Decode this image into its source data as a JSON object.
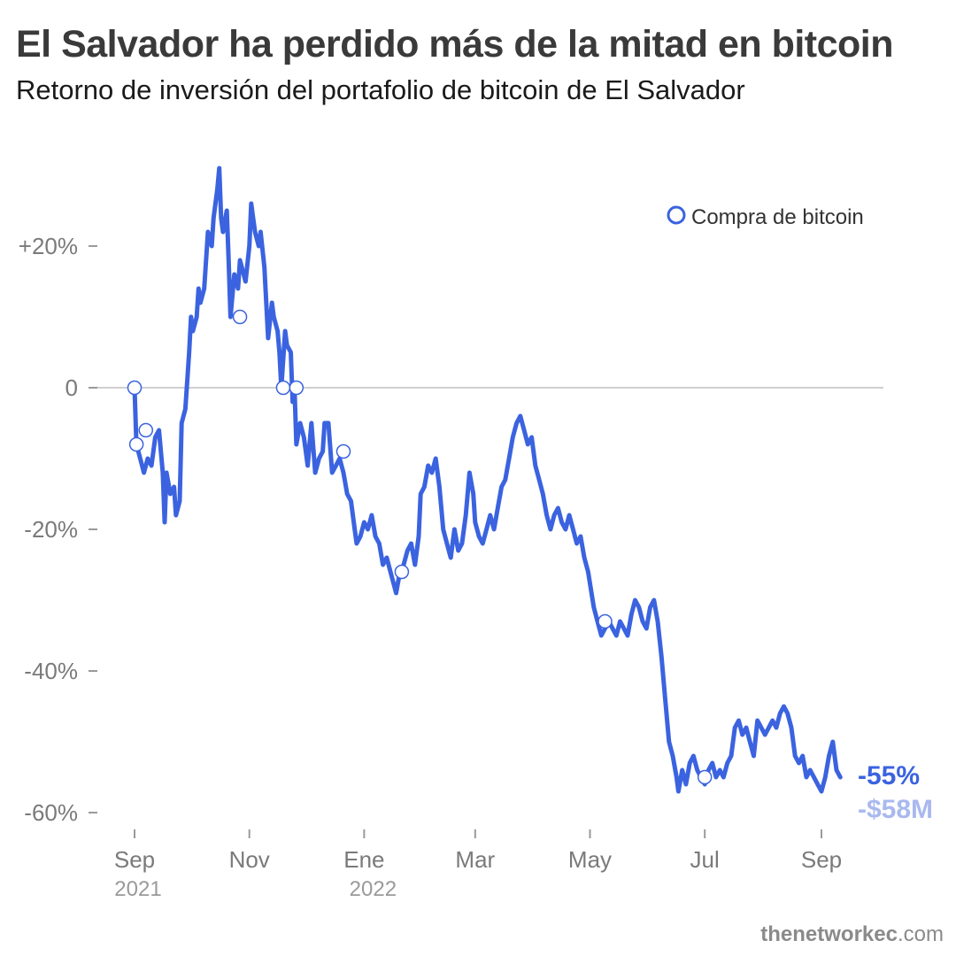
{
  "header": {
    "title": "El Salvador ha perdido más de la mitad en bitcoin",
    "subtitle": "Retorno de inversión del portafolio de bitcoin de El Salvador"
  },
  "source": {
    "name": "thenetworkec",
    "suffix": ".com"
  },
  "colors": {
    "line": "#3b63e0",
    "end_value": "#3b63e0",
    "end_amount": "#a9b9ef",
    "axis_text": "#7a7a7a",
    "zero_line": "#cfcfcf"
  },
  "chart_data": {
    "type": "line",
    "title": "El Salvador ha perdido más de la mitad en bitcoin",
    "subtitle": "Retorno de inversión del portafolio de bitcoin de El Salvador",
    "x_range": [
      "2021-09-01",
      "2022-09-30"
    ],
    "ylim": [
      -62,
      33
    ],
    "y_ticks": [
      {
        "value": 20,
        "label": "+20%"
      },
      {
        "value": 0,
        "label": "0"
      },
      {
        "value": -20,
        "label": "-20%"
      },
      {
        "value": -40,
        "label": "-40%"
      },
      {
        "value": -60,
        "label": "-60%"
      }
    ],
    "x_ticks": [
      {
        "date": "2021-09-01",
        "label": "Sep",
        "year": "2021"
      },
      {
        "date": "2021-11-01",
        "label": "Nov",
        "year": ""
      },
      {
        "date": "2022-01-01",
        "label": "Ene",
        "year": "2022"
      },
      {
        "date": "2022-03-01",
        "label": "Mar",
        "year": ""
      },
      {
        "date": "2022-05-01",
        "label": "May",
        "year": ""
      },
      {
        "date": "2022-07-01",
        "label": "Jul",
        "year": ""
      },
      {
        "date": "2022-09-01",
        "label": "Sep",
        "year": ""
      }
    ],
    "grid": false,
    "legend": {
      "label": "Compra de bitcoin",
      "position": "top-right"
    },
    "series": [
      {
        "points": [
          [
            "2021-09-01",
            0
          ],
          [
            "2021-09-02",
            -8
          ],
          [
            "2021-09-04",
            -10
          ],
          [
            "2021-09-06",
            -12
          ],
          [
            "2021-09-08",
            -10
          ],
          [
            "2021-09-10",
            -11
          ],
          [
            "2021-09-12",
            -7
          ],
          [
            "2021-09-14",
            -6
          ],
          [
            "2021-09-16",
            -12
          ],
          [
            "2021-09-17",
            -19
          ],
          [
            "2021-09-18",
            -12
          ],
          [
            "2021-09-20",
            -15
          ],
          [
            "2021-09-22",
            -14
          ],
          [
            "2021-09-23",
            -18
          ],
          [
            "2021-09-25",
            -16
          ],
          [
            "2021-09-26",
            -5
          ],
          [
            "2021-09-28",
            -3
          ],
          [
            "2021-09-30",
            5
          ],
          [
            "2021-10-01",
            10
          ],
          [
            "2021-10-02",
            8
          ],
          [
            "2021-10-04",
            10
          ],
          [
            "2021-10-05",
            14
          ],
          [
            "2021-10-06",
            12
          ],
          [
            "2021-10-08",
            14
          ],
          [
            "2021-10-10",
            22
          ],
          [
            "2021-10-12",
            20
          ],
          [
            "2021-10-13",
            24
          ],
          [
            "2021-10-15",
            28
          ],
          [
            "2021-10-16",
            31
          ],
          [
            "2021-10-17",
            24
          ],
          [
            "2021-10-18",
            22
          ],
          [
            "2021-10-20",
            25
          ],
          [
            "2021-10-21",
            18
          ],
          [
            "2021-10-22",
            10
          ],
          [
            "2021-10-24",
            16
          ],
          [
            "2021-10-26",
            14
          ],
          [
            "2021-10-27",
            18
          ],
          [
            "2021-10-29",
            16
          ],
          [
            "2021-10-30",
            15
          ],
          [
            "2021-11-01",
            20
          ],
          [
            "2021-11-02",
            26
          ],
          [
            "2021-11-03",
            24
          ],
          [
            "2021-11-04",
            22
          ],
          [
            "2021-11-06",
            20
          ],
          [
            "2021-11-07",
            22
          ],
          [
            "2021-11-09",
            17
          ],
          [
            "2021-11-10",
            12
          ],
          [
            "2021-11-11",
            7
          ],
          [
            "2021-11-13",
            12
          ],
          [
            "2021-11-14",
            10
          ],
          [
            "2021-11-16",
            8
          ],
          [
            "2021-11-17",
            5
          ],
          [
            "2021-11-18",
            0
          ],
          [
            "2021-11-20",
            8
          ],
          [
            "2021-11-21",
            6
          ],
          [
            "2021-11-23",
            5
          ],
          [
            "2021-11-24",
            -2
          ],
          [
            "2021-11-25",
            0
          ],
          [
            "2021-11-26",
            -8
          ],
          [
            "2021-11-28",
            -5
          ],
          [
            "2021-11-30",
            -7
          ],
          [
            "2021-12-01",
            -9
          ],
          [
            "2021-12-02",
            -11
          ],
          [
            "2021-12-04",
            -5
          ],
          [
            "2021-12-06",
            -12
          ],
          [
            "2021-12-08",
            -10
          ],
          [
            "2021-12-10",
            -9
          ],
          [
            "2021-12-11",
            -5
          ],
          [
            "2021-12-13",
            -5
          ],
          [
            "2021-12-15",
            -12
          ],
          [
            "2021-12-17",
            -11
          ],
          [
            "2021-12-19",
            -10
          ],
          [
            "2021-12-21",
            -12
          ],
          [
            "2021-12-23",
            -15
          ],
          [
            "2021-12-25",
            -16
          ],
          [
            "2021-12-27",
            -20
          ],
          [
            "2021-12-28",
            -22
          ],
          [
            "2021-12-30",
            -21
          ],
          [
            "2022-01-01",
            -19
          ],
          [
            "2022-01-03",
            -20
          ],
          [
            "2022-01-05",
            -18
          ],
          [
            "2022-01-07",
            -21
          ],
          [
            "2022-01-09",
            -22
          ],
          [
            "2022-01-11",
            -25
          ],
          [
            "2022-01-13",
            -24
          ],
          [
            "2022-01-15",
            -26
          ],
          [
            "2022-01-17",
            -28
          ],
          [
            "2022-01-18",
            -29
          ],
          [
            "2022-01-20",
            -26
          ],
          [
            "2022-01-22",
            -25
          ],
          [
            "2022-01-24",
            -23
          ],
          [
            "2022-01-26",
            -22
          ],
          [
            "2022-01-28",
            -25
          ],
          [
            "2022-01-30",
            -21
          ],
          [
            "2022-01-31",
            -15
          ],
          [
            "2022-02-02",
            -14
          ],
          [
            "2022-02-04",
            -11
          ],
          [
            "2022-02-06",
            -12
          ],
          [
            "2022-02-08",
            -10
          ],
          [
            "2022-02-10",
            -14
          ],
          [
            "2022-02-12",
            -20
          ],
          [
            "2022-02-14",
            -22
          ],
          [
            "2022-02-16",
            -24
          ],
          [
            "2022-02-18",
            -20
          ],
          [
            "2022-02-20",
            -23
          ],
          [
            "2022-02-22",
            -22
          ],
          [
            "2022-02-24",
            -18
          ],
          [
            "2022-02-26",
            -12
          ],
          [
            "2022-02-28",
            -15
          ],
          [
            "2022-03-01",
            -19
          ],
          [
            "2022-03-03",
            -21
          ],
          [
            "2022-03-05",
            -22
          ],
          [
            "2022-03-07",
            -20
          ],
          [
            "2022-03-09",
            -18
          ],
          [
            "2022-03-11",
            -20
          ],
          [
            "2022-03-13",
            -17
          ],
          [
            "2022-03-15",
            -14
          ],
          [
            "2022-03-17",
            -13
          ],
          [
            "2022-03-19",
            -10
          ],
          [
            "2022-03-21",
            -7
          ],
          [
            "2022-03-23",
            -5
          ],
          [
            "2022-03-25",
            -4
          ],
          [
            "2022-03-27",
            -6
          ],
          [
            "2022-03-29",
            -8
          ],
          [
            "2022-03-31",
            -7
          ],
          [
            "2022-04-02",
            -11
          ],
          [
            "2022-04-04",
            -13
          ],
          [
            "2022-04-06",
            -15
          ],
          [
            "2022-04-08",
            -18
          ],
          [
            "2022-04-10",
            -20
          ],
          [
            "2022-04-12",
            -18
          ],
          [
            "2022-04-14",
            -17
          ],
          [
            "2022-04-16",
            -19
          ],
          [
            "2022-04-18",
            -20
          ],
          [
            "2022-04-20",
            -18
          ],
          [
            "2022-04-22",
            -20
          ],
          [
            "2022-04-24",
            -22
          ],
          [
            "2022-04-26",
            -21
          ],
          [
            "2022-04-28",
            -24
          ],
          [
            "2022-04-30",
            -26
          ],
          [
            "2022-05-03",
            -31
          ],
          [
            "2022-05-05",
            -33
          ],
          [
            "2022-05-07",
            -35
          ],
          [
            "2022-05-09",
            -34
          ],
          [
            "2022-05-11",
            -33
          ],
          [
            "2022-05-13",
            -34
          ],
          [
            "2022-05-15",
            -35
          ],
          [
            "2022-05-17",
            -33
          ],
          [
            "2022-05-19",
            -34
          ],
          [
            "2022-05-21",
            -35
          ],
          [
            "2022-05-23",
            -32
          ],
          [
            "2022-05-25",
            -30
          ],
          [
            "2022-05-27",
            -31
          ],
          [
            "2022-05-29",
            -33
          ],
          [
            "2022-05-31",
            -34
          ],
          [
            "2022-06-02",
            -31
          ],
          [
            "2022-06-04",
            -30
          ],
          [
            "2022-06-06",
            -33
          ],
          [
            "2022-06-08",
            -38
          ],
          [
            "2022-06-10",
            -44
          ],
          [
            "2022-06-12",
            -50
          ],
          [
            "2022-06-14",
            -52
          ],
          [
            "2022-06-16",
            -55
          ],
          [
            "2022-06-17",
            -57
          ],
          [
            "2022-06-19",
            -54
          ],
          [
            "2022-06-21",
            -56
          ],
          [
            "2022-06-23",
            -53
          ],
          [
            "2022-06-25",
            -52
          ],
          [
            "2022-06-27",
            -54
          ],
          [
            "2022-06-29",
            -55
          ],
          [
            "2022-07-01",
            -56
          ],
          [
            "2022-07-03",
            -54
          ],
          [
            "2022-07-05",
            -53
          ],
          [
            "2022-07-07",
            -55
          ],
          [
            "2022-07-09",
            -54
          ],
          [
            "2022-07-11",
            -55
          ],
          [
            "2022-07-13",
            -53
          ],
          [
            "2022-07-15",
            -52
          ],
          [
            "2022-07-17",
            -48
          ],
          [
            "2022-07-19",
            -47
          ],
          [
            "2022-07-21",
            -49
          ],
          [
            "2022-07-23",
            -48
          ],
          [
            "2022-07-25",
            -50
          ],
          [
            "2022-07-27",
            -52
          ],
          [
            "2022-07-29",
            -47
          ],
          [
            "2022-07-31",
            -48
          ],
          [
            "2022-08-02",
            -49
          ],
          [
            "2022-08-04",
            -48
          ],
          [
            "2022-08-06",
            -47
          ],
          [
            "2022-08-08",
            -48
          ],
          [
            "2022-08-10",
            -46
          ],
          [
            "2022-08-12",
            -45
          ],
          [
            "2022-08-14",
            -46
          ],
          [
            "2022-08-16",
            -48
          ],
          [
            "2022-08-18",
            -52
          ],
          [
            "2022-08-20",
            -53
          ],
          [
            "2022-08-22",
            -52
          ],
          [
            "2022-08-24",
            -55
          ],
          [
            "2022-08-26",
            -54
          ],
          [
            "2022-08-28",
            -55
          ],
          [
            "2022-08-30",
            -56
          ],
          [
            "2022-09-01",
            -57
          ],
          [
            "2022-09-03",
            -55
          ],
          [
            "2022-09-05",
            -52
          ],
          [
            "2022-09-07",
            -50
          ],
          [
            "2022-09-09",
            -54
          ],
          [
            "2022-09-11",
            -55
          ]
        ]
      }
    ],
    "purchases": [
      [
        "2021-09-01",
        0
      ],
      [
        "2021-09-02",
        -8
      ],
      [
        "2021-09-07",
        -6
      ],
      [
        "2021-10-27",
        10
      ],
      [
        "2021-11-19",
        0
      ],
      [
        "2021-11-26",
        0
      ],
      [
        "2021-12-21",
        -9
      ],
      [
        "2022-01-21",
        -26
      ],
      [
        "2022-05-09",
        -33
      ],
      [
        "2022-07-01",
        -55
      ]
    ],
    "end_label": {
      "value": "-55%",
      "amount": "-$58M"
    }
  }
}
